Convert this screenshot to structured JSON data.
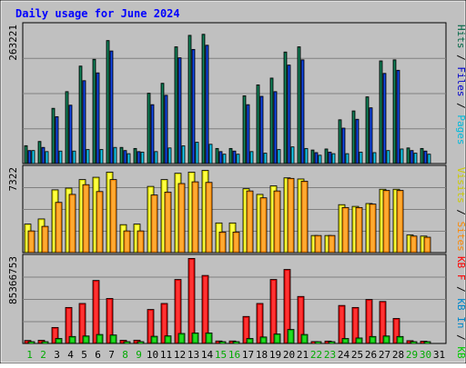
{
  "chart_data": {
    "type": "bar",
    "title": "Daily usage for June 2024",
    "categories": [
      "1",
      "2",
      "3",
      "4",
      "5",
      "6",
      "7",
      "8",
      "9",
      "10",
      "11",
      "12",
      "13",
      "14",
      "15",
      "16",
      "17",
      "18",
      "19",
      "20",
      "21",
      "22",
      "23",
      "24",
      "25",
      "26",
      "27",
      "28",
      "29",
      "30",
      "31"
    ],
    "weekend_days": [
      1,
      2,
      8,
      9,
      15,
      16,
      22,
      23,
      29,
      30
    ],
    "colors": {
      "background": "#c0c0c0",
      "title": "#0000ff",
      "hits": "#006644",
      "files": "#0000cc",
      "pages": "#00bbdd",
      "visits": "#ffff00",
      "sites": "#ff8800",
      "kb_in": "#0088cc",
      "kb_out": "#00cc00",
      "kb_f": "#ff0000",
      "weekday_label": "#000000",
      "weekend_label": "#00aa00"
    },
    "panels": [
      {
        "max_label": "263221",
        "legend": [
          {
            "text": "Hits",
            "color": "#006644"
          },
          {
            "text": "Files",
            "color": "#0000cc"
          },
          {
            "text": "Pages",
            "color": "#00bbdd"
          }
        ],
        "series": [
          {
            "name": "Hits",
            "values": [
              34300,
              42400,
              106000,
              138000,
              187000,
              200000,
              236000,
              31000,
              29000,
              135000,
              154000,
              224000,
              246000,
              248000,
              29000,
              29000,
              130000,
              151000,
              164000,
              214000,
              224000,
              26000,
              28000,
              84000,
              101000,
              128000,
              197000,
              199000,
              30000,
              29000,
              0
            ]
          },
          {
            "name": "Files",
            "values": [
              25000,
              31000,
              90000,
              112000,
              159000,
              174000,
              216000,
              25000,
              23000,
              113000,
              131000,
              203000,
              219000,
              227000,
              23000,
              24000,
              113000,
              129000,
              138000,
              189000,
              199000,
              21000,
              22000,
              68000,
              85000,
              107000,
              173000,
              179000,
              25000,
              24000,
              0
            ]
          },
          {
            "name": "Pages",
            "values": [
              25000,
              23000,
              24000,
              24000,
              27000,
              27000,
              31000,
              19000,
              22000,
              23000,
              30000,
              34000,
              41000,
              37000,
              18000,
              18000,
              23000,
              20000,
              27000,
              32000,
              29000,
              16000,
              19000,
              19000,
              22000,
              21000,
              25000,
              28000,
              20000,
              18000,
              0
            ]
          }
        ],
        "ymax": 263221
      },
      {
        "max_label": "7322",
        "legend": [
          {
            "text": "Visits",
            "color": "#cccc00"
          },
          {
            "text": "Sites",
            "color": "#ff8800"
          }
        ],
        "series": [
          {
            "name": "Visits",
            "values": [
              2500,
              2950,
              5500,
              5650,
              6400,
              6600,
              7050,
              2450,
              2500,
              5800,
              6400,
              6950,
              7050,
              7200,
              2600,
              2600,
              5600,
              5100,
              5850,
              6550,
              6450,
              1500,
              1500,
              4200,
              4050,
              4300,
              5550,
              5550,
              1550,
              1450,
              0
            ]
          },
          {
            "name": "Sites",
            "values": [
              1900,
              2300,
              4400,
              5100,
              5950,
              5350,
              6400,
              1900,
              1900,
              5050,
              5300,
              6050,
              6200,
              6150,
              1800,
              1800,
              5400,
              4800,
              5400,
              6500,
              6250,
              1500,
              1500,
              3950,
              3950,
              4250,
              5450,
              5450,
              1450,
              1350,
              0
            ]
          }
        ],
        "ymax": 7322
      },
      {
        "max_label": "85366753",
        "legend": [
          {
            "text": "KB F",
            "color": "#ff0000"
          },
          {
            "text": "KB In",
            "color": "#0088cc"
          },
          {
            "text": "KB Out",
            "color": "#00cc00"
          }
        ],
        "series": [
          {
            "name": "KB F",
            "values": [
              3000000,
              3200000,
              16000000,
              36000000,
              40000000,
              63000000,
              45000000,
              3200000,
              3300000,
              34000000,
              40000000,
              64000000,
              85000000,
              68000000,
              2500000,
              2500000,
              27000000,
              40000000,
              64000000,
              74000000,
              47000000,
              1900000,
              2400000,
              38000000,
              36000000,
              44000000,
              42000000,
              25000000,
              2800000,
              2300000,
              0
            ]
          },
          {
            "name": "KB Out",
            "values": [
              1000000,
              1300000,
              5000000,
              7000000,
              7500000,
              9000000,
              8500000,
              1100000,
              1100000,
              7200000,
              7600000,
              10000000,
              10500000,
              10500000,
              1000000,
              1000000,
              5000000,
              6500000,
              9500000,
              14000000,
              9000000,
              900000,
              1000000,
              5000000,
              5500000,
              7000000,
              7500000,
              7000000,
              1000000,
              900000,
              0
            ]
          }
        ],
        "ymax": 85366753
      }
    ]
  }
}
